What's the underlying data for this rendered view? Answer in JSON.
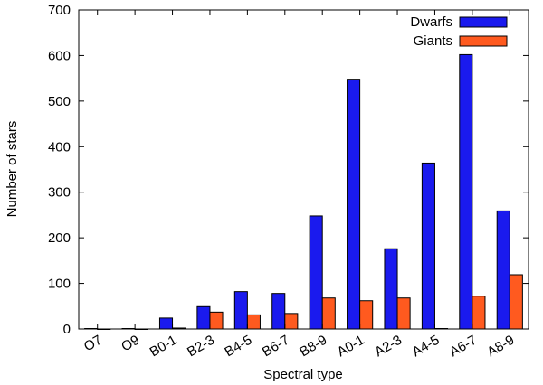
{
  "chart_data": {
    "type": "bar",
    "xlabel": "Spectral type",
    "ylabel": "Number of stars",
    "ylim": [
      0,
      700
    ],
    "yticks": [
      0,
      100,
      200,
      300,
      400,
      500,
      600,
      700
    ],
    "categories": [
      "O7",
      "O9",
      "B0-1",
      "B2-3",
      "B4-5",
      "B6-7",
      "B8-9",
      "A0-1",
      "A2-3",
      "A4-5",
      "A6-7",
      "A8-9"
    ],
    "series": [
      {
        "name": "Dwarfs",
        "color": "#1a1aee",
        "values": [
          1,
          1,
          24,
          49,
          82,
          78,
          248,
          548,
          176,
          364,
          602,
          259
        ]
      },
      {
        "name": "Giants",
        "color": "#ff5a1f",
        "values": [
          0,
          0,
          2,
          37,
          31,
          34,
          68,
          62,
          68,
          1,
          72,
          119
        ]
      }
    ],
    "legend_position": "top-right",
    "grid": false
  }
}
